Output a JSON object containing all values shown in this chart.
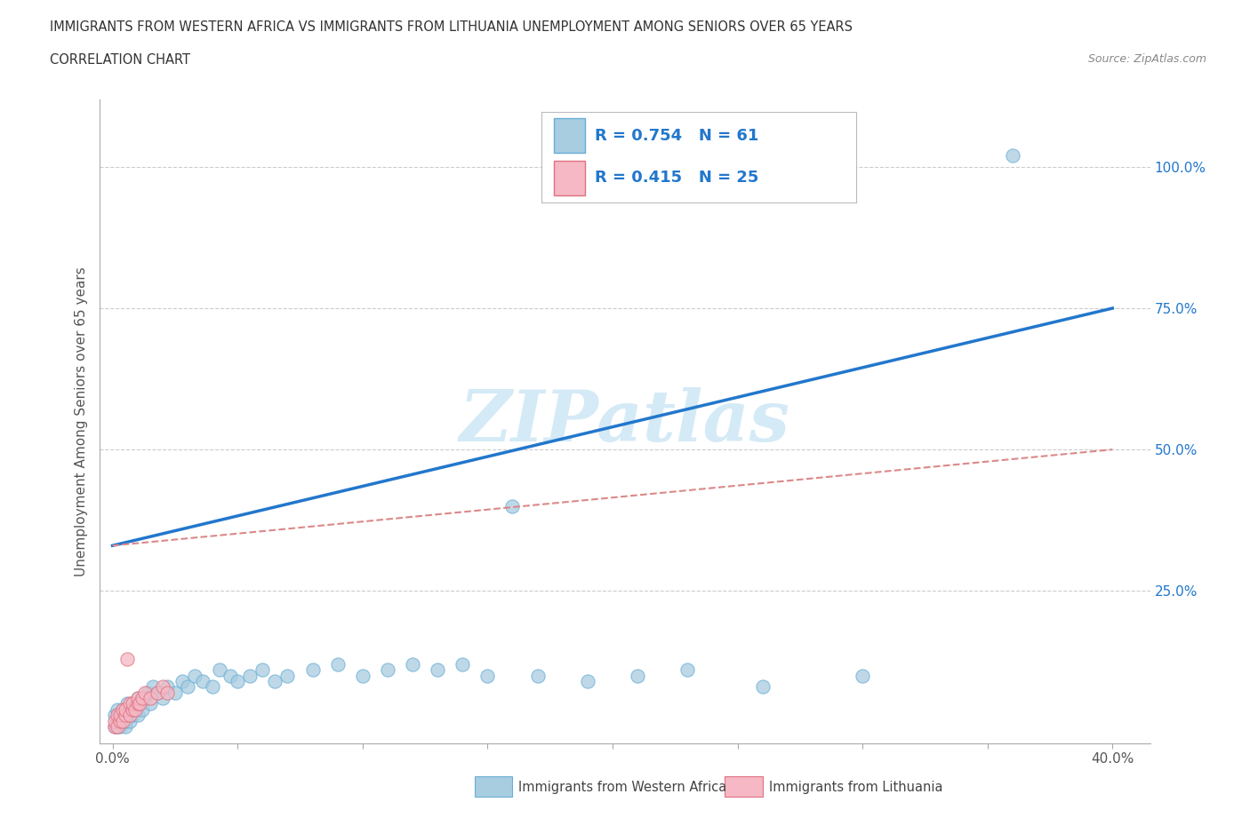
{
  "title_line1": "IMMIGRANTS FROM WESTERN AFRICA VS IMMIGRANTS FROM LITHUANIA UNEMPLOYMENT AMONG SENIORS OVER 65 YEARS",
  "title_line2": "CORRELATION CHART",
  "source": "Source: ZipAtlas.com",
  "ylabel": "Unemployment Among Seniors over 65 years",
  "xlim_min": -0.005,
  "xlim_max": 0.415,
  "ylim_min": -0.02,
  "ylim_max": 1.12,
  "xtick_positions": [
    0.0,
    0.05,
    0.1,
    0.15,
    0.2,
    0.25,
    0.3,
    0.35,
    0.4
  ],
  "ytick_positions": [
    0.0,
    0.25,
    0.5,
    0.75,
    1.0
  ],
  "ytick_labels": [
    "",
    "25.0%",
    "50.0%",
    "75.0%",
    "100.0%"
  ],
  "wa_color_fill": "#a8cce0",
  "wa_color_edge": "#6aafd6",
  "lt_color_fill": "#f5b8c4",
  "lt_color_edge": "#e07080",
  "trend_blue": "#2277cc",
  "trend_pink": "#dd8888",
  "watermark_color": "#d0e8f5",
  "R_africa": 0.754,
  "N_africa": 61,
  "R_lithuania": 0.415,
  "N_lithuania": 25,
  "legend_label_africa": "Immigrants from Western Africa",
  "legend_label_lithuania": "Immigrants from Lithuania",
  "blue_line_x0": 0.0,
  "blue_line_y0": 0.33,
  "blue_line_x1": 0.4,
  "blue_line_y1": 0.75,
  "pink_line_x0": 0.0,
  "pink_line_y0": 0.33,
  "pink_line_x1": 0.4,
  "pink_line_y1": 0.5,
  "wa_scatter_x": [
    0.001,
    0.001,
    0.002,
    0.002,
    0.002,
    0.003,
    0.003,
    0.003,
    0.004,
    0.004,
    0.004,
    0.005,
    0.005,
    0.005,
    0.006,
    0.006,
    0.007,
    0.007,
    0.008,
    0.008,
    0.009,
    0.01,
    0.01,
    0.011,
    0.012,
    0.013,
    0.014,
    0.015,
    0.016,
    0.018,
    0.02,
    0.022,
    0.025,
    0.028,
    0.03,
    0.033,
    0.036,
    0.04,
    0.043,
    0.047,
    0.05,
    0.055,
    0.06,
    0.065,
    0.07,
    0.08,
    0.09,
    0.1,
    0.11,
    0.12,
    0.13,
    0.14,
    0.15,
    0.16,
    0.17,
    0.19,
    0.21,
    0.23,
    0.26,
    0.3,
    0.36
  ],
  "wa_scatter_y": [
    0.01,
    0.03,
    0.01,
    0.02,
    0.04,
    0.01,
    0.03,
    0.02,
    0.02,
    0.03,
    0.04,
    0.01,
    0.02,
    0.04,
    0.03,
    0.05,
    0.02,
    0.04,
    0.03,
    0.05,
    0.04,
    0.03,
    0.06,
    0.05,
    0.04,
    0.06,
    0.07,
    0.05,
    0.08,
    0.07,
    0.06,
    0.08,
    0.07,
    0.09,
    0.08,
    0.1,
    0.09,
    0.08,
    0.11,
    0.1,
    0.09,
    0.1,
    0.11,
    0.09,
    0.1,
    0.11,
    0.12,
    0.1,
    0.11,
    0.12,
    0.11,
    0.12,
    0.1,
    0.4,
    0.1,
    0.09,
    0.1,
    0.11,
    0.08,
    0.1,
    1.02
  ],
  "lt_scatter_x": [
    0.001,
    0.001,
    0.002,
    0.002,
    0.003,
    0.003,
    0.004,
    0.004,
    0.005,
    0.005,
    0.006,
    0.007,
    0.007,
    0.008,
    0.008,
    0.009,
    0.01,
    0.01,
    0.011,
    0.012,
    0.013,
    0.015,
    0.018,
    0.02,
    0.022
  ],
  "lt_scatter_y": [
    0.01,
    0.02,
    0.01,
    0.03,
    0.02,
    0.03,
    0.02,
    0.04,
    0.03,
    0.04,
    0.13,
    0.03,
    0.05,
    0.04,
    0.05,
    0.04,
    0.05,
    0.06,
    0.05,
    0.06,
    0.07,
    0.06,
    0.07,
    0.08,
    0.07
  ]
}
